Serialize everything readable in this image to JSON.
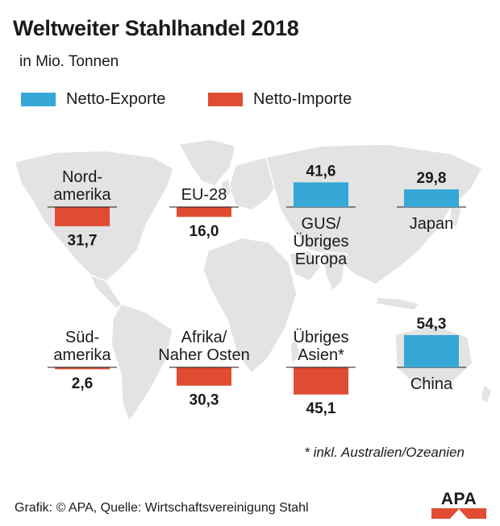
{
  "header": {
    "title": "Weltweiter Stahlhandel 2018",
    "subtitle": "in Mio. Tonnen"
  },
  "legend": {
    "exports_label": "Netto-Exporte",
    "imports_label": "Netto-Importe"
  },
  "colors": {
    "exports": "#35a8d8",
    "imports": "#df4c33",
    "map": "#e3e3e3",
    "baseline": "#1a1a1a"
  },
  "chart_data": {
    "type": "bar",
    "title": "Weltweiter Stahlhandel 2018",
    "subtitle": "in Mio. Tonnen",
    "unit": "Mio. Tonnen",
    "series": [
      {
        "name": "Netto-Exporte",
        "color": "#35a8d8"
      },
      {
        "name": "Netto-Importe",
        "color": "#df4c33"
      }
    ],
    "regions": [
      {
        "label": [
          "Nord-",
          "amerika"
        ],
        "value": 31.7,
        "display": "31,7",
        "type": "import"
      },
      {
        "label": [
          "EU-28"
        ],
        "value": 16.0,
        "display": "16,0",
        "type": "import"
      },
      {
        "label": [
          "GUS/",
          "Übriges",
          "Europa"
        ],
        "value": 41.6,
        "display": "41,6",
        "type": "export"
      },
      {
        "label": [
          "Japan"
        ],
        "value": 29.8,
        "display": "29,8",
        "type": "export"
      },
      {
        "label": [
          "Süd-",
          "amerika"
        ],
        "value": 2.6,
        "display": "2,6",
        "type": "import"
      },
      {
        "label": [
          "Afrika/",
          "Naher Osten"
        ],
        "value": 30.3,
        "display": "30,3",
        "type": "import"
      },
      {
        "label": [
          "Übriges",
          "Asien*"
        ],
        "value": 45.1,
        "display": "45,1",
        "type": "import"
      },
      {
        "label": [
          "China"
        ],
        "value": 54.3,
        "display": "54,3",
        "type": "export"
      }
    ]
  },
  "footnote": "* inkl. Australien/Ozeanien",
  "source": "Grafik: © APA, Quelle: Wirtschaftsvereinigung Stahl",
  "logo_text": "APA"
}
